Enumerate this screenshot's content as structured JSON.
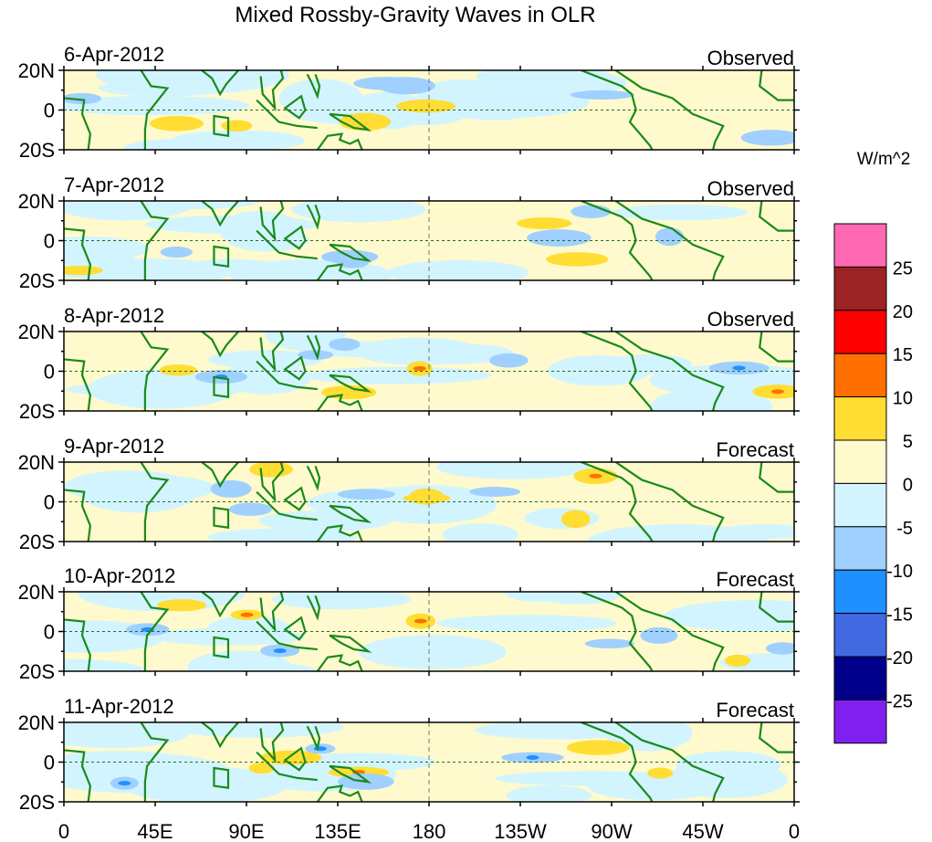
{
  "chart_data": {
    "type": "heatmap",
    "title": "Mixed Rossby-Gravity Waves in OLR",
    "units_label": "W/m^2",
    "x_ticks": [
      "0",
      "45E",
      "90E",
      "135E",
      "180",
      "135W",
      "90W",
      "45W",
      "0"
    ],
    "y_ticks": [
      "20N",
      "0",
      "20S"
    ],
    "xlim": [
      0,
      360
    ],
    "ylim": [
      -20,
      20
    ],
    "panels": [
      {
        "date": "6-Apr-2012",
        "type": "Observed"
      },
      {
        "date": "7-Apr-2012",
        "type": "Observed"
      },
      {
        "date": "8-Apr-2012",
        "type": "Observed"
      },
      {
        "date": "9-Apr-2012",
        "type": "Forecast"
      },
      {
        "date": "10-Apr-2012",
        "type": "Forecast"
      },
      {
        "date": "11-Apr-2012",
        "type": "Forecast"
      }
    ],
    "colorbar": {
      "levels": [
        "25",
        "20",
        "15",
        "10",
        "5",
        "0",
        "-5",
        "-10",
        "-15",
        "-20",
        "-25"
      ],
      "colors": [
        "#ff69b4",
        "#9b2323",
        "#ff0000",
        "#ff7000",
        "#ffdd33",
        "#fffacd",
        "#d2f4ff",
        "#a0d0ff",
        "#1e90ff",
        "#4169e1",
        "#00008b",
        "#8020f0"
      ]
    },
    "land_color": "#1a8a1a"
  }
}
